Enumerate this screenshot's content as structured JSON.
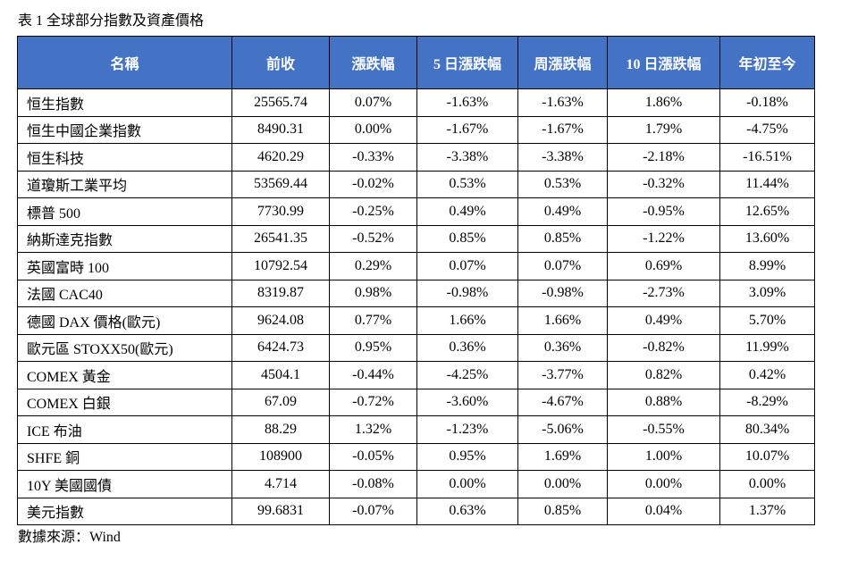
{
  "caption": "表 1 全球部分指數及資產價格",
  "colors": {
    "header_bg": "#4472c4",
    "header_text": "#ffffff",
    "border": "#000000"
  },
  "table": {
    "headers": [
      "名稱",
      "前收",
      "漲跌幅",
      "5 日漲跌幅",
      "周漲跌幅",
      "10 日漲跌幅",
      "年初至今"
    ],
    "rows": [
      [
        "恒生指數",
        "25565.74",
        "0.07%",
        "-1.63%",
        "-1.63%",
        "1.86%",
        "-0.18%"
      ],
      [
        "恒生中國企業指數",
        "8490.31",
        "0.00%",
        "-1.67%",
        "-1.67%",
        "1.79%",
        "-4.75%"
      ],
      [
        "恒生科技",
        "4620.29",
        "-0.33%",
        "-3.38%",
        "-3.38%",
        "-2.18%",
        "-16.51%"
      ],
      [
        "道瓊斯工業平均",
        "53569.44",
        "-0.02%",
        "0.53%",
        "0.53%",
        "-0.32%",
        "11.44%"
      ],
      [
        "標普 500",
        "7730.99",
        "-0.25%",
        "0.49%",
        "0.49%",
        "-0.95%",
        "12.65%"
      ],
      [
        "納斯達克指數",
        "26541.35",
        "-0.52%",
        "0.85%",
        "0.85%",
        "-1.22%",
        "13.60%"
      ],
      [
        "英國富時 100",
        "10792.54",
        "0.29%",
        "0.07%",
        "0.07%",
        "0.69%",
        "8.99%"
      ],
      [
        "法國 CAC40",
        "8319.87",
        "0.98%",
        "-0.98%",
        "-0.98%",
        "-2.73%",
        "3.09%"
      ],
      [
        "德國 DAX 價格(歐元)",
        "9624.08",
        "0.77%",
        "1.66%",
        "1.66%",
        "0.49%",
        "5.70%"
      ],
      [
        "歐元區 STOXX50(歐元)",
        "6424.73",
        "0.95%",
        "0.36%",
        "0.36%",
        "-0.82%",
        "11.99%"
      ],
      [
        "COMEX 黃金",
        "4504.1",
        "-0.44%",
        "-4.25%",
        "-3.77%",
        "0.82%",
        "0.42%"
      ],
      [
        "COMEX 白銀",
        "67.09",
        "-0.72%",
        "-3.60%",
        "-4.67%",
        "0.88%",
        "-8.29%"
      ],
      [
        "ICE 布油",
        "88.29",
        "1.32%",
        "-1.23%",
        "-5.06%",
        "-0.55%",
        "80.34%"
      ],
      [
        "SHFE 銅",
        "108900",
        "-0.05%",
        "0.95%",
        "1.69%",
        "1.00%",
        "10.07%"
      ],
      [
        "10Y 美國國債",
        "4.714",
        "-0.08%",
        "0.00%",
        "0.00%",
        "0.00%",
        "0.00%"
      ],
      [
        "美元指數",
        "99.6831",
        "-0.07%",
        "0.63%",
        "0.85%",
        "0.04%",
        "1.37%"
      ]
    ]
  },
  "source": "數據來源：Wind"
}
